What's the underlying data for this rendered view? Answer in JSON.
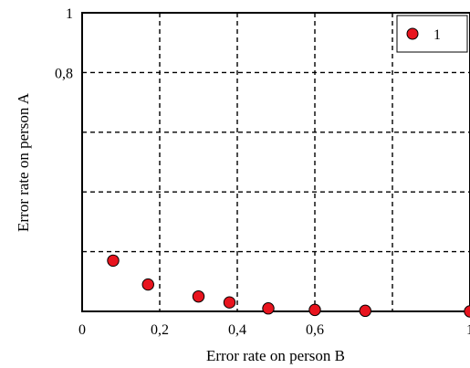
{
  "chart_data": {
    "type": "scatter",
    "title": "",
    "xlabel": "Error rate on person B",
    "ylabel": "Error rate on person A",
    "xlim": [
      0,
      1
    ],
    "ylim": [
      0,
      1
    ],
    "x_ticks": [
      0,
      0.2,
      0.4,
      0.6,
      0.8,
      1
    ],
    "x_tick_labels": [
      "0",
      "0,2",
      "0,4",
      "0,6",
      "",
      "1"
    ],
    "y_ticks": [
      0,
      0.2,
      0.4,
      0.6,
      0.8,
      1
    ],
    "y_tick_labels": [
      "",
      "",
      "",
      "",
      "0,8",
      "1"
    ],
    "grid": true,
    "grid_style": "dashed",
    "legend_position": "top-right",
    "series": [
      {
        "name": "1",
        "color": "#e8141e",
        "marker": "circle",
        "points": [
          {
            "x": 0.08,
            "y": 0.17
          },
          {
            "x": 0.17,
            "y": 0.09
          },
          {
            "x": 0.3,
            "y": 0.05
          },
          {
            "x": 0.38,
            "y": 0.03
          },
          {
            "x": 0.48,
            "y": 0.01
          },
          {
            "x": 0.6,
            "y": 0.005
          },
          {
            "x": 0.73,
            "y": 0.002
          },
          {
            "x": 1.0,
            "y": 0.0
          }
        ]
      }
    ]
  }
}
